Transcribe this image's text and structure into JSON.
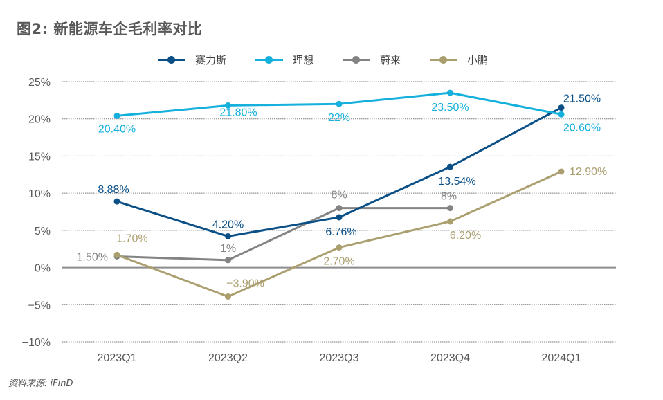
{
  "title": "图2: 新能源车企毛利率对比",
  "source": "资料来源: iFinD",
  "chart_data": {
    "type": "line",
    "title": "图2: 新能源车企毛利率对比",
    "xlabel": "",
    "ylabel": "",
    "categories": [
      "2023Q1",
      "2023Q2",
      "2023Q3",
      "2023Q4",
      "2024Q1"
    ],
    "ylim": [
      -10,
      25
    ],
    "yticks": [
      25,
      20,
      15,
      10,
      5,
      0,
      -5,
      -10
    ],
    "ytick_labels": [
      "25%",
      "20%",
      "15%",
      "10%",
      "5%",
      "0%",
      "−5%",
      "−10%"
    ],
    "grid": true,
    "legend_position": "top",
    "series": [
      {
        "name": "赛力斯",
        "color": "#0b4f87",
        "values": [
          8.88,
          4.2,
          6.76,
          13.54,
          21.5
        ],
        "labels": [
          "8.88%",
          "4.20%",
          "6.76%",
          "13.54%",
          "21.50%"
        ]
      },
      {
        "name": "理想",
        "color": "#16b0dd",
        "values": [
          20.4,
          21.8,
          22.0,
          23.5,
          20.6
        ],
        "labels": [
          "20.40%",
          "21.80%",
          "22%",
          "23.50%",
          "20.60%"
        ]
      },
      {
        "name": "蔚来",
        "color": "#838383",
        "values": [
          1.5,
          1.0,
          8.0,
          8.0,
          null
        ],
        "labels": [
          "1.50%",
          "1%",
          "8%",
          "8%",
          null
        ]
      },
      {
        "name": "小鹏",
        "color": "#ab9f70",
        "values": [
          1.7,
          -3.9,
          2.7,
          6.2,
          12.9
        ],
        "labels": [
          "1.70%",
          "−3.90%",
          "2.70%",
          "6.20%",
          "12.90%"
        ]
      }
    ]
  }
}
